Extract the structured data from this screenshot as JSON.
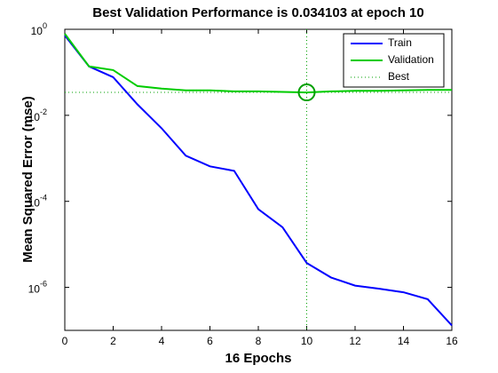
{
  "chart_data": {
    "type": "line",
    "title": "Best Validation Performance is 0.034103 at epoch 10",
    "xlabel": "16 Epochs",
    "ylabel": "Mean Squared Error  (mse)",
    "x": [
      0,
      1,
      2,
      3,
      4,
      5,
      6,
      7,
      8,
      9,
      10,
      11,
      12,
      13,
      14,
      15,
      16
    ],
    "series": [
      {
        "name": "Train",
        "color": "#0000ff",
        "values": [
          0.72,
          0.137,
          0.077,
          0.018,
          0.005,
          0.00115,
          0.00065,
          0.00051,
          6.6e-05,
          2.5e-05,
          3.7e-06,
          1.7e-06,
          1.1e-06,
          9.3e-07,
          7.7e-07,
          5.3e-07,
          1.3e-07
        ]
      },
      {
        "name": "Validation",
        "color": "#00cc00",
        "values": [
          0.79,
          0.137,
          0.113,
          0.048,
          0.042,
          0.038,
          0.038,
          0.036,
          0.036,
          0.035,
          0.034103,
          0.036,
          0.037,
          0.037,
          0.038,
          0.039,
          0.039
        ]
      }
    ],
    "best": {
      "name": "Best",
      "color": "#00a000",
      "epoch": 10,
      "value": 0.034103
    },
    "xlim": [
      0,
      16
    ],
    "xticks": [
      0,
      2,
      4,
      6,
      8,
      10,
      12,
      14,
      16
    ],
    "ylim": [
      1e-07,
      1
    ],
    "yscale": "log",
    "yticks": [
      {
        "value": 1e-06,
        "label": "10",
        "exponent": "-6"
      },
      {
        "value": 0.0001,
        "label": "10",
        "exponent": "-4"
      },
      {
        "value": 0.01,
        "label": "10",
        "exponent": "-2"
      },
      {
        "value": 1,
        "label": "10",
        "exponent": "0"
      }
    ],
    "legend": "upper right"
  }
}
